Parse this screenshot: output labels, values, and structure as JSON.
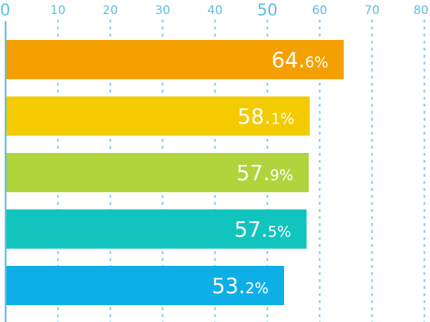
{
  "chart_data": {
    "type": "bar",
    "orientation": "horizontal",
    "title": "",
    "xlabel": "",
    "ylabel": "",
    "xlim": [
      0,
      80
    ],
    "ticks": [
      {
        "value": 0,
        "label": "0"
      },
      {
        "value": 10,
        "label": "10"
      },
      {
        "value": 20,
        "label": "20"
      },
      {
        "value": 30,
        "label": "30"
      },
      {
        "value": 40,
        "label": "40"
      },
      {
        "value": 50,
        "label": "50"
      },
      {
        "value": 60,
        "label": "60"
      },
      {
        "value": 70,
        "label": "70"
      },
      {
        "value": 80,
        "label": "80"
      }
    ],
    "grid": true,
    "bars": [
      {
        "value": 64.6,
        "label_main": "64.",
        "label_small": "6%",
        "color": "#F4A000"
      },
      {
        "value": 58.1,
        "label_main": "58.",
        "label_small": "1%",
        "color": "#F3CB00"
      },
      {
        "value": 57.9,
        "label_main": "57.",
        "label_small": "9%",
        "color": "#AFD43C"
      },
      {
        "value": 57.5,
        "label_main": "57.",
        "label_small": "5%",
        "color": "#12C4BE"
      },
      {
        "value": 53.2,
        "label_main": "53.",
        "label_small": "2%",
        "color": "#0EAFE6"
      }
    ],
    "colors": {
      "axis": "#5DC0DE",
      "grid": "#8FD1E8",
      "tick_text": "#5DC0DE",
      "value_text": "#FFFFFF"
    }
  }
}
